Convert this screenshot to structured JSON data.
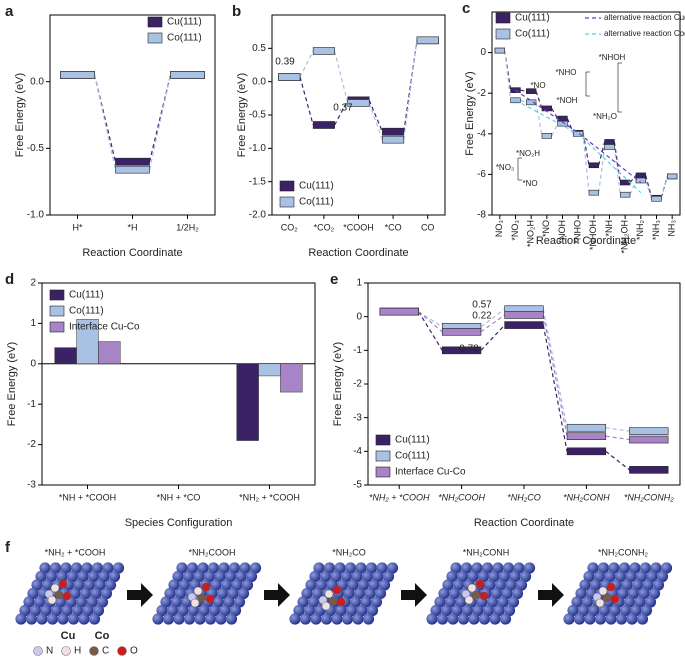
{
  "chart_data": [
    {
      "type": "energy",
      "panel": "a",
      "xlabel": "Reaction Coordinate",
      "ylabel": "Free Energy (eV)",
      "categories": [
        "H*",
        "*H",
        "1/2H₂"
      ],
      "series": [
        {
          "name": "Cu(111)",
          "color": "#3b2266",
          "values": [
            0.05,
            -0.6,
            0.05
          ]
        },
        {
          "name": "Co(111)",
          "color": "#a9c1e3",
          "values": [
            0.05,
            -0.66,
            0.05
          ]
        }
      ],
      "ylim": [
        -1.0,
        0.5
      ],
      "yticks": [
        {
          "value": -1.0,
          "label": "-1.0"
        },
        {
          "value": -0.5,
          "label": "-0.5"
        },
        {
          "value": 0.0,
          "label": "0.0"
        }
      ],
      "legend": "upper right"
    },
    {
      "type": "energy",
      "panel": "b",
      "xlabel": "Reaction Coordinate",
      "ylabel": "Free Energy (eV)",
      "categories": [
        "CO₂",
        "*CO₂",
        "*COOH",
        "*CO",
        "CO"
      ],
      "series": [
        {
          "name": "Cu(111)",
          "color": "#3b2266",
          "values": [
            0.07,
            -0.65,
            -0.28,
            -0.75,
            0.62
          ]
        },
        {
          "name": "Co(111)",
          "color": "#a9c1e3",
          "values": [
            0.07,
            0.46,
            -0.32,
            -0.87,
            0.62
          ]
        }
      ],
      "annotations": [
        {
          "text": "0.39",
          "color": "#8fb0dc"
        },
        {
          "text": "0.37",
          "color": "#5b2a86"
        }
      ],
      "ylim": [
        -2.0,
        1.0
      ],
      "yticks": [
        {
          "value": -2.0,
          "label": "-2.0"
        },
        {
          "value": -1.5,
          "label": "-1.5"
        },
        {
          "value": -1.0,
          "label": "-1.0"
        },
        {
          "value": -0.5,
          "label": "-0.5"
        },
        {
          "value": 0.0,
          "label": "0.0"
        },
        {
          "value": 0.5,
          "label": "0.5"
        }
      ],
      "legend": "lower left"
    },
    {
      "type": "energy",
      "panel": "c",
      "xlabel": "Reaction Coordinate",
      "ylabel": "Free Energy (eV)",
      "categories": [
        "NO₃",
        "*NO₃",
        "*NO₂H",
        "*NO",
        "*NOH",
        "*NHO",
        "*NHOH",
        "*NH",
        "*NH₂OH",
        "*NH₂",
        "*NH₃",
        "NH₃"
      ],
      "series": [
        {
          "name": "Cu(111)",
          "color": "#3b2266",
          "values": [
            0.1,
            -1.85,
            -1.9,
            -2.75,
            -3.25,
            -3.95,
            -5.55,
            -4.4,
            -6.4,
            -6.05,
            -7.15,
            -6.1
          ]
        },
        {
          "name": "Co(111)",
          "color": "#a9c1e3",
          "values": [
            0.1,
            -2.35,
            -2.45,
            -4.1,
            -3.5,
            -4.0,
            -6.9,
            -4.65,
            -7.0,
            -6.3,
            -7.2,
            -6.1
          ]
        },
        {
          "name": "alternative reaction Cu(111)",
          "color": "#6a3fc4",
          "line": "dashed",
          "values": [
            null,
            -1.85,
            null,
            null,
            null,
            -3.95,
            null,
            null,
            null,
            -6.4,
            null,
            null
          ]
        },
        {
          "name": "alternative reaction Co(111)",
          "color": "#5fd0e6",
          "line": "dashed",
          "values": [
            null,
            -2.35,
            null,
            null,
            null,
            -4.0,
            null,
            null,
            null,
            -6.9,
            null,
            null
          ]
        }
      ],
      "annotations": [
        {
          "text": "*NHOH"
        },
        {
          "text": "*NHO"
        },
        {
          "text": "*NO"
        },
        {
          "text": "*NOH"
        },
        {
          "text": "*NH₂O"
        },
        {
          "text": "*NO₃"
        },
        {
          "text": "*NO₂H"
        },
        {
          "text": "*NO"
        }
      ],
      "ylim": [
        -8,
        2
      ],
      "yticks": [
        0,
        -2,
        -4,
        -6,
        -8
      ],
      "legend": "upper left"
    },
    {
      "type": "bar",
      "panel": "d",
      "xlabel": "Species Configuration",
      "ylabel": "Free Energy (eV)",
      "categories": [
        "*NH + *COOH",
        "*NH + *CO",
        "*NH₂ + *COOH"
      ],
      "series": [
        {
          "name": "Cu(111)",
          "color": "#3b2266",
          "values": [
            0.4,
            null,
            -1.9
          ]
        },
        {
          "name": "Co(111)",
          "color": "#a9c1e3",
          "values": [
            1.1,
            null,
            -0.3
          ]
        },
        {
          "name": "Interface Cu-Co",
          "color": "#a784c6",
          "values": [
            0.55,
            null,
            -0.7
          ]
        }
      ],
      "ylim": [
        -3,
        2
      ],
      "yticks": [
        -3,
        -2,
        -1,
        0,
        1,
        2
      ],
      "legend": "upper left"
    },
    {
      "type": "energy",
      "panel": "e",
      "xlabel": "Reaction Coordinate",
      "ylabel": "Free Energy (eV)",
      "categories": [
        "*NH₂ + *COOH",
        "*NH₂COOH",
        "*NH₂CO",
        "*NH₂CONH",
        "*NH₂CONH₂"
      ],
      "series": [
        {
          "name": "Cu(111)",
          "color": "#3b2266",
          "values": [
            0.15,
            -1.0,
            -0.25,
            -4.0,
            -4.55
          ]
        },
        {
          "name": "Co(111)",
          "color": "#a9c1e3",
          "values": [
            0.15,
            -0.3,
            0.22,
            -3.3,
            -3.4
          ]
        },
        {
          "name": "Interface Cu-Co",
          "color": "#a784c6",
          "values": [
            0.15,
            -0.45,
            0.05,
            -3.55,
            -3.65
          ]
        }
      ],
      "annotations": [
        {
          "text": "0.57",
          "color": "#9a86c8"
        },
        {
          "text": "0.22",
          "color": "#9cc0e6"
        },
        {
          "text": "0.78",
          "color": "#4a2a78"
        }
      ],
      "ylim": [
        -5,
        1
      ],
      "yticks": [
        -5,
        -4,
        -3,
        -2,
        -1,
        0,
        1
      ],
      "legend": "lower left"
    }
  ],
  "panel_f": {
    "panel": "f",
    "labels": [
      "*NH₂ + *COOH",
      "*NH₂COOH",
      "*NH₂CO",
      "*NH₂CONH",
      "*NH₂CONH₂"
    ],
    "metals": [
      "Cu",
      "Co"
    ],
    "elements": [
      {
        "symbol": "N",
        "color": "#c9cbec"
      },
      {
        "symbol": "H",
        "color": "#f3dede"
      },
      {
        "symbol": "C",
        "color": "#7a5a45"
      },
      {
        "symbol": "O",
        "color": "#d11b1b"
      }
    ]
  }
}
